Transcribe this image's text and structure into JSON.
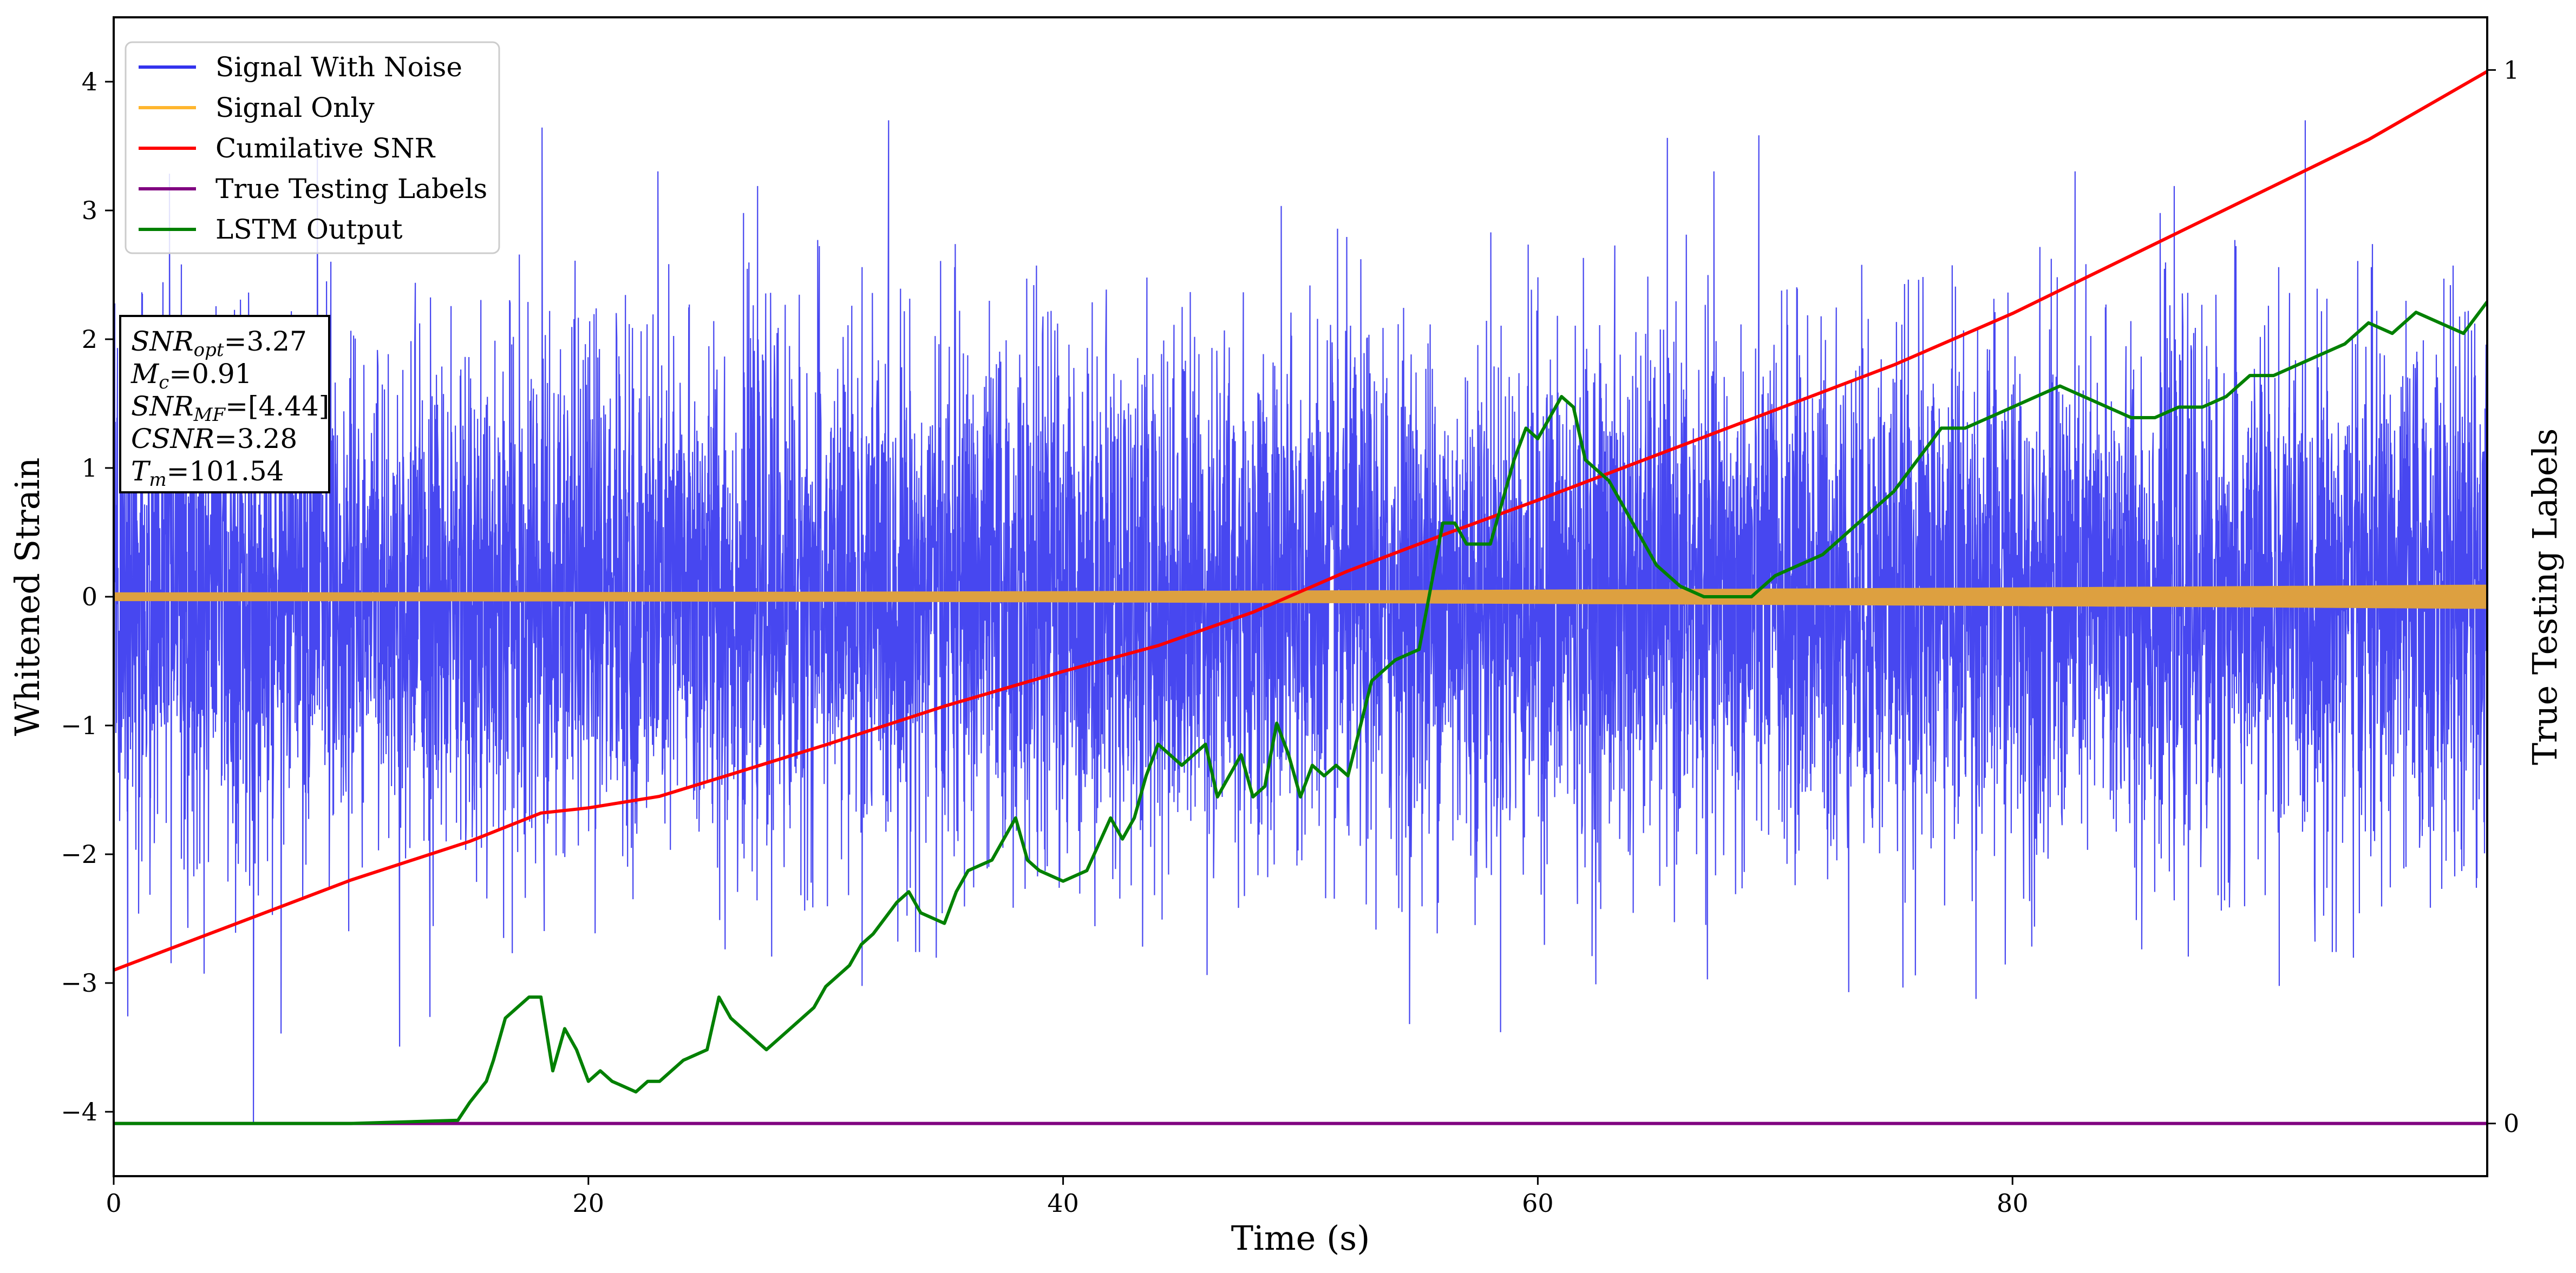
{
  "chart_data": {
    "type": "line",
    "xlabel": "Time (s)",
    "ylabel": "Whitened Strain",
    "y2label": "True Testing Labels",
    "xlim": [
      0,
      100
    ],
    "ylim": [
      -4.5,
      4.5
    ],
    "y2lim": [
      -0.05,
      1.05
    ],
    "x_ticks": [
      0,
      20,
      40,
      60,
      80
    ],
    "y_ticks": [
      -4,
      -3,
      -2,
      -1,
      0,
      1,
      2,
      3,
      4
    ],
    "y2_ticks": [
      0,
      1
    ],
    "grid": false,
    "legend": {
      "placement": "top-left",
      "entries": [
        {
          "name": "Signal With Noise",
          "color": "#3333ee"
        },
        {
          "name": "Signal Only",
          "color": "#ffb62e"
        },
        {
          "name": "Cumilative SNR",
          "color": "#ff0000"
        },
        {
          "name": "True Testing Labels",
          "color": "#800080"
        },
        {
          "name": "LSTM Output",
          "color": "#008000"
        }
      ]
    },
    "stats_box": [
      {
        "base": "SNR",
        "sub": "opt",
        "value": "=3.27"
      },
      {
        "base": "M",
        "sub": "c",
        "value": "=0.91"
      },
      {
        "base": "SNR",
        "sub": "MF",
        "value": "=[4.44]"
      },
      {
        "base": "CSNR",
        "sub": "",
        "value": "=3.28"
      },
      {
        "base": "T",
        "sub": "m",
        "value": "=101.54"
      }
    ],
    "series": [
      {
        "name": "Signal With Noise",
        "axis": "left",
        "color": "#3333ee",
        "description_type": "noise",
        "amplitude_sigma": 1.0,
        "amplitude_range": [
          -4.1,
          3.7
        ]
      },
      {
        "name": "Signal Only",
        "axis": "left",
        "color": "#ffb62e",
        "amplitude_start": 0.03,
        "amplitude_end": 0.09
      },
      {
        "name": "Cumilative SNR",
        "axis": "left",
        "color": "#ff0000",
        "x": [
          0,
          5,
          10,
          15,
          18,
          20,
          23,
          26,
          30,
          35,
          40,
          44,
          48,
          52,
          56,
          60,
          65,
          70,
          75,
          80,
          85,
          90,
          95,
          100
        ],
        "y": [
          -2.9,
          -2.55,
          -2.2,
          -1.9,
          -1.68,
          -1.64,
          -1.55,
          -1.38,
          -1.15,
          -0.85,
          -0.58,
          -0.38,
          -0.12,
          0.2,
          0.48,
          0.75,
          1.1,
          1.45,
          1.8,
          2.2,
          2.65,
          3.1,
          3.55,
          4.08
        ]
      },
      {
        "name": "True Testing Labels",
        "axis": "right",
        "color": "#800080",
        "x": [
          0,
          100
        ],
        "y": [
          0,
          0
        ]
      },
      {
        "name": "LSTM Output",
        "axis": "right",
        "color": "#008000",
        "x": [
          0,
          5,
          10,
          14.5,
          15,
          15.7,
          16,
          16.5,
          17,
          17.5,
          18,
          18.5,
          19,
          19.5,
          20,
          20.5,
          21,
          22,
          22.5,
          23,
          23.5,
          24,
          25,
          25.5,
          26,
          27,
          27.5,
          28,
          29,
          29.5,
          30,
          30.5,
          31,
          31.5,
          32,
          33,
          33.5,
          34,
          35,
          35.5,
          36,
          37,
          38,
          38.5,
          39,
          40,
          41,
          42,
          42.5,
          43,
          43.5,
          44,
          45,
          46,
          46.5,
          47,
          47.5,
          48,
          48.5,
          49,
          49.5,
          50,
          50.5,
          51,
          51.5,
          52,
          53,
          53.5,
          54,
          55,
          56,
          56.5,
          57,
          58,
          59,
          59.5,
          60,
          61,
          61.5,
          62,
          63,
          64,
          65,
          66,
          67,
          68,
          69,
          70,
          71,
          72,
          73,
          74,
          75,
          76,
          77,
          78,
          79,
          80,
          81,
          82,
          83,
          84,
          85,
          86,
          87,
          88,
          89,
          90,
          91,
          92,
          93,
          94,
          95,
          96,
          97,
          98,
          99,
          100
        ],
        "y": [
          0,
          0,
          0,
          0.003,
          0.02,
          0.04,
          0.06,
          0.1,
          0.11,
          0.12,
          0.12,
          0.05,
          0.09,
          0.07,
          0.04,
          0.05,
          0.04,
          0.03,
          0.04,
          0.04,
          0.05,
          0.06,
          0.07,
          0.12,
          0.1,
          0.08,
          0.07,
          0.08,
          0.1,
          0.11,
          0.13,
          0.14,
          0.15,
          0.17,
          0.18,
          0.21,
          0.22,
          0.2,
          0.19,
          0.22,
          0.24,
          0.25,
          0.29,
          0.25,
          0.24,
          0.23,
          0.24,
          0.29,
          0.27,
          0.29,
          0.33,
          0.36,
          0.34,
          0.36,
          0.31,
          0.33,
          0.35,
          0.31,
          0.32,
          0.38,
          0.35,
          0.31,
          0.34,
          0.33,
          0.34,
          0.33,
          0.42,
          0.43,
          0.44,
          0.45,
          0.57,
          0.57,
          0.55,
          0.55,
          0.63,
          0.66,
          0.65,
          0.69,
          0.68,
          0.63,
          0.61,
          0.57,
          0.53,
          0.51,
          0.5,
          0.5,
          0.5,
          0.52,
          0.53,
          0.54,
          0.56,
          0.58,
          0.6,
          0.63,
          0.66,
          0.66,
          0.67,
          0.68,
          0.69,
          0.7,
          0.69,
          0.68,
          0.67,
          0.67,
          0.68,
          0.68,
          0.69,
          0.71,
          0.71,
          0.72,
          0.73,
          0.74,
          0.76,
          0.75,
          0.77,
          0.76,
          0.75,
          0.78
        ]
      }
    ]
  }
}
